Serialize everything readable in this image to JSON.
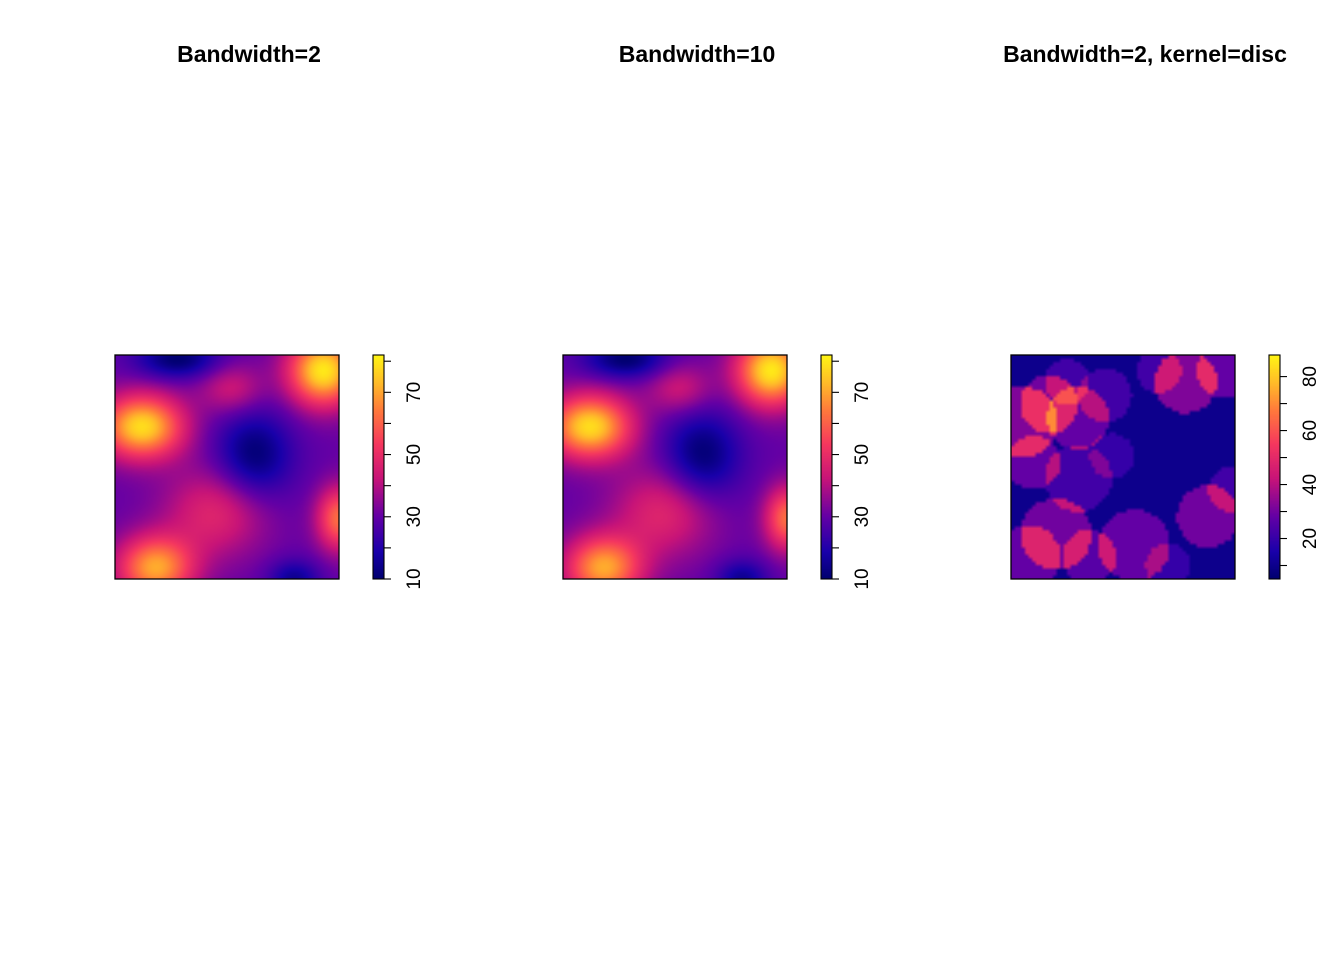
{
  "chart_data": [
    {
      "type": "heatmap",
      "title": "Bandwidth=2",
      "colorbar": {
        "range": [
          10,
          82
        ],
        "ticks": [
          10,
          20,
          30,
          40,
          50,
          60,
          70,
          80
        ],
        "tick_labels": [
          "10",
          "30",
          "50",
          "70"
        ]
      },
      "field": {
        "kernel": "gaussian",
        "base": 30,
        "bumps": [
          {
            "x": 0.12,
            "y": 0.68,
            "amp": 48,
            "sx": 0.13,
            "sy": 0.1
          },
          {
            "x": 0.93,
            "y": 0.93,
            "amp": 50,
            "sx": 0.11,
            "sy": 0.11
          },
          {
            "x": 0.18,
            "y": 0.05,
            "amp": 40,
            "sx": 0.12,
            "sy": 0.1
          },
          {
            "x": 1.0,
            "y": 0.27,
            "amp": 32,
            "sx": 0.07,
            "sy": 0.1
          },
          {
            "x": 0.45,
            "y": 0.3,
            "amp": 18,
            "sx": 0.16,
            "sy": 0.14
          },
          {
            "x": 0.52,
            "y": 0.85,
            "amp": 14,
            "sx": 0.1,
            "sy": 0.08
          },
          {
            "x": 0.62,
            "y": 0.55,
            "amp": -20,
            "sx": 0.12,
            "sy": 0.14
          },
          {
            "x": 0.28,
            "y": 0.98,
            "amp": -20,
            "sx": 0.13,
            "sy": 0.06
          },
          {
            "x": 0.8,
            "y": 0.0,
            "amp": -15,
            "sx": 0.08,
            "sy": 0.06
          }
        ]
      }
    },
    {
      "type": "heatmap",
      "title": "Bandwidth=10",
      "colorbar": {
        "range": [
          10,
          82
        ],
        "ticks": [
          10,
          20,
          30,
          40,
          50,
          60,
          70,
          80
        ],
        "tick_labels": [
          "10",
          "30",
          "50",
          "70"
        ]
      },
      "field": {
        "kernel": "gaussian",
        "base": 30,
        "bumps": [
          {
            "x": 0.12,
            "y": 0.68,
            "amp": 48,
            "sx": 0.13,
            "sy": 0.1
          },
          {
            "x": 0.93,
            "y": 0.93,
            "amp": 50,
            "sx": 0.11,
            "sy": 0.11
          },
          {
            "x": 0.18,
            "y": 0.05,
            "amp": 40,
            "sx": 0.12,
            "sy": 0.1
          },
          {
            "x": 1.0,
            "y": 0.27,
            "amp": 32,
            "sx": 0.07,
            "sy": 0.1
          },
          {
            "x": 0.45,
            "y": 0.3,
            "amp": 18,
            "sx": 0.16,
            "sy": 0.14
          },
          {
            "x": 0.52,
            "y": 0.85,
            "amp": 14,
            "sx": 0.1,
            "sy": 0.08
          },
          {
            "x": 0.62,
            "y": 0.55,
            "amp": -20,
            "sx": 0.12,
            "sy": 0.14
          },
          {
            "x": 0.28,
            "y": 0.98,
            "amp": -20,
            "sx": 0.13,
            "sy": 0.06
          },
          {
            "x": 0.8,
            "y": 0.0,
            "amp": -15,
            "sx": 0.08,
            "sy": 0.06
          }
        ]
      }
    },
    {
      "type": "heatmap",
      "title": "Bandwidth=2, kernel=disc",
      "colorbar": {
        "range": [
          5,
          88
        ],
        "ticks": [
          10,
          20,
          30,
          40,
          50,
          60,
          70,
          80
        ],
        "tick_labels": [
          "20",
          "40",
          "60",
          "80"
        ],
        "label_ticks": [
          20,
          40,
          60,
          80
        ]
      },
      "field": {
        "kernel": "disc",
        "base": 10,
        "discs": [
          {
            "x": 0.05,
            "y": 0.7,
            "r": 0.16,
            "amp": 22
          },
          {
            "x": 0.17,
            "y": 0.78,
            "r": 0.13,
            "amp": 20
          },
          {
            "x": 0.3,
            "y": 0.72,
            "r": 0.14,
            "amp": 18
          },
          {
            "x": 0.1,
            "y": 0.52,
            "r": 0.12,
            "amp": 18
          },
          {
            "x": 0.25,
            "y": 0.88,
            "r": 0.1,
            "amp": 12
          },
          {
            "x": 0.42,
            "y": 0.82,
            "r": 0.12,
            "amp": 12
          },
          {
            "x": 0.78,
            "y": 0.88,
            "r": 0.14,
            "amp": 22
          },
          {
            "x": 0.95,
            "y": 0.93,
            "r": 0.12,
            "amp": 18
          },
          {
            "x": 0.66,
            "y": 0.93,
            "r": 0.1,
            "amp": 12
          },
          {
            "x": 0.2,
            "y": 0.2,
            "r": 0.16,
            "amp": 20
          },
          {
            "x": 0.08,
            "y": 0.1,
            "r": 0.14,
            "amp": 18
          },
          {
            "x": 0.35,
            "y": 0.1,
            "r": 0.12,
            "amp": 16
          },
          {
            "x": 0.55,
            "y": 0.15,
            "r": 0.16,
            "amp": 18
          },
          {
            "x": 0.88,
            "y": 0.28,
            "r": 0.14,
            "amp": 20
          },
          {
            "x": 0.98,
            "y": 0.4,
            "r": 0.1,
            "amp": 12
          },
          {
            "x": 0.3,
            "y": 0.45,
            "r": 0.15,
            "amp": 12
          },
          {
            "x": 0.45,
            "y": 0.55,
            "r": 0.1,
            "amp": 10
          },
          {
            "x": 0.7,
            "y": 0.06,
            "r": 0.1,
            "amp": 10
          }
        ]
      }
    }
  ]
}
